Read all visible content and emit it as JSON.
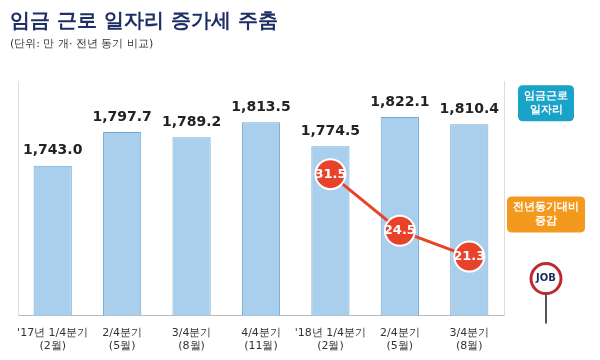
{
  "chart_data": {
    "type": "bar",
    "title": "임금 근로 일자리 증가세 주춤",
    "subtitle": "(단위: 만 개· 전년 동기 비교)",
    "categories": [
      [
        "'17년 1/4분기",
        "(2월)"
      ],
      [
        "2/4분기",
        "(5월)"
      ],
      [
        "3/4분기",
        "(8월)"
      ],
      [
        "4/4분기",
        "(11월)"
      ],
      [
        "'18년 1/4분기",
        "(2월)"
      ],
      [
        "2/4분기",
        "(5월)"
      ],
      [
        "3/4분기",
        "(8월)"
      ]
    ],
    "series": [
      {
        "name": "임금근로 일자리",
        "type": "bar",
        "color": "#a9cfec",
        "values": [
          1743.0,
          1797.7,
          1789.2,
          1813.5,
          1774.5,
          1822.1,
          1810.4
        ],
        "value_labels": [
          "1,743.0",
          "1,797.7",
          "1,789.2",
          "1,813.5",
          "1,774.5",
          "1,822.1",
          "1,810.4"
        ]
      },
      {
        "name": "전년동기대비 증감",
        "type": "line",
        "color": "#e8432a",
        "axis": "y2",
        "marker": "circle",
        "values": [
          null,
          null,
          null,
          null,
          31.5,
          24.5,
          21.3
        ]
      }
    ],
    "ylim": [
      1500,
      1880
    ],
    "y2lim": [
      14,
      43
    ],
    "tick_labels": "x",
    "grid": false,
    "data_labels": true,
    "annotations": [
      {
        "text": "JOB"
      }
    ]
  }
}
